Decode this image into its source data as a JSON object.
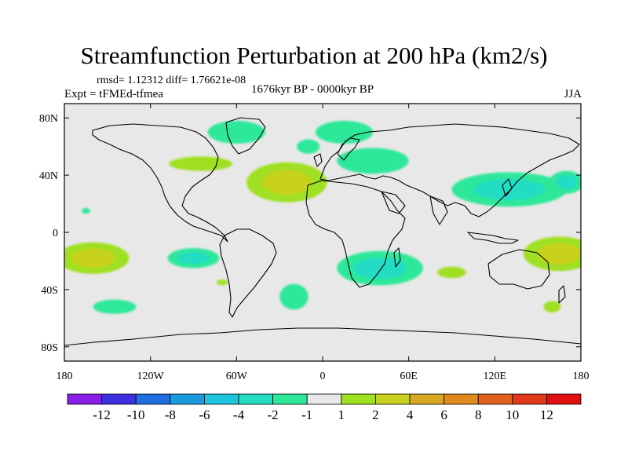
{
  "title": "Streamfunction Perturbation at 200 hPa (km2/s)",
  "stats_line": "rmsd= 1.12312  diff= 1.76621e-08",
  "period": "1676kyr BP - 0000kyr BP",
  "experiment": "Expt = tFMEd-tfmea",
  "season": "JJA",
  "chart_data": {
    "type": "contour-map",
    "title": "Streamfunction Perturbation at 200 hPa (km2/s)",
    "units": "km2/s",
    "projection": "cylindrical equidistant",
    "xlim": [
      -180,
      180
    ],
    "ylim": [
      -90,
      90
    ],
    "x_ticks": [
      {
        "value": -180,
        "label": "180"
      },
      {
        "value": -120,
        "label": "120W"
      },
      {
        "value": -60,
        "label": "60W"
      },
      {
        "value": 0,
        "label": "0"
      },
      {
        "value": 60,
        "label": "60E"
      },
      {
        "value": 120,
        "label": "120E"
      },
      {
        "value": 180,
        "label": "180"
      }
    ],
    "y_ticks": [
      {
        "value": 80,
        "label": "80N"
      },
      {
        "value": 40,
        "label": "40N"
      },
      {
        "value": 0,
        "label": "0"
      },
      {
        "value": -40,
        "label": "40S"
      },
      {
        "value": -80,
        "label": "80S"
      }
    ],
    "colorbar": {
      "levels": [
        -12,
        -10,
        -8,
        -6,
        -4,
        -2,
        -1,
        1,
        2,
        4,
        6,
        8,
        10,
        12
      ],
      "labels": [
        "-12",
        "-10",
        "-8",
        "-6",
        "-4",
        "-2",
        "-1",
        "1",
        "2",
        "4",
        "6",
        "8",
        "10",
        "12"
      ],
      "colors": [
        "#8a1fe6",
        "#3b2fe0",
        "#1f6fe0",
        "#1a9be0",
        "#1fc4e0",
        "#22ddc4",
        "#2ee89a",
        "#e8e8e8",
        "#9fe020",
        "#c8d21e",
        "#d8a820",
        "#e08a1e",
        "#e0601c",
        "#e03a1a",
        "#e01010"
      ],
      "neutral_band": [
        -1,
        1
      ]
    },
    "anomalies": [
      {
        "lon": -60,
        "lat": 70,
        "value": -1.5,
        "rlon": 20,
        "rlat": 8
      },
      {
        "lon": 15,
        "lat": 70,
        "value": -1.5,
        "rlon": 20,
        "rlat": 8
      },
      {
        "lon": -85,
        "lat": 48,
        "value": 1.5,
        "rlon": 22,
        "rlat": 5
      },
      {
        "lon": -10,
        "lat": 60,
        "value": -1.5,
        "rlon": 8,
        "rlat": 5
      },
      {
        "lon": -25,
        "lat": 35,
        "value": 3.0,
        "rlon": 28,
        "rlat": 14
      },
      {
        "lon": 35,
        "lat": 50,
        "value": -1.5,
        "rlon": 25,
        "rlat": 9
      },
      {
        "lon": 130,
        "lat": 30,
        "value": -3.0,
        "rlon": 40,
        "rlat": 12
      },
      {
        "lon": 170,
        "lat": 35,
        "value": -3.0,
        "rlon": 12,
        "rlat": 8
      },
      {
        "lon": -165,
        "lat": 15,
        "value": -1.5,
        "rlon": 3,
        "rlat": 2
      },
      {
        "lon": -160,
        "lat": -18,
        "value": 3.5,
        "rlon": 25,
        "rlat": 11
      },
      {
        "lon": -90,
        "lat": -18,
        "value": -2.5,
        "rlon": 18,
        "rlat": 7
      },
      {
        "lon": -70,
        "lat": -35,
        "value": 1.5,
        "rlon": 4,
        "rlat": 2
      },
      {
        "lon": -20,
        "lat": -45,
        "value": -1.5,
        "rlon": 10,
        "rlat": 9
      },
      {
        "lon": -145,
        "lat": -52,
        "value": -1.5,
        "rlon": 15,
        "rlat": 5
      },
      {
        "lon": 40,
        "lat": -25,
        "value": -3.0,
        "rlon": 30,
        "rlat": 12
      },
      {
        "lon": 90,
        "lat": -28,
        "value": 1.5,
        "rlon": 10,
        "rlat": 4
      },
      {
        "lon": 165,
        "lat": -15,
        "value": 3.5,
        "rlon": 25,
        "rlat": 12
      },
      {
        "lon": 160,
        "lat": -52,
        "value": 1.5,
        "rlon": 6,
        "rlat": 4
      }
    ]
  }
}
